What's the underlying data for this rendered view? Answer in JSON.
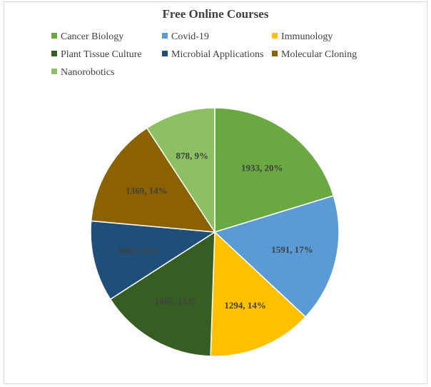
{
  "chart_data": {
    "type": "pie",
    "title": "Free Online Courses",
    "legend_position": "top",
    "slices": [
      {
        "name": "Cancer Biology",
        "value": 1933,
        "percent": "20%",
        "label": "1933, 20%",
        "color": "#6aa842"
      },
      {
        "name": "Covid-19",
        "value": 1591,
        "percent": "17%",
        "label": "1591, 17%",
        "color": "#5b9bd5"
      },
      {
        "name": "Immunology",
        "value": 1294,
        "percent": "14%",
        "label": "1294, 14%",
        "color": "#ffc000"
      },
      {
        "name": "Plant Tissue Culture",
        "value": 1465,
        "percent": "15%",
        "label": "1465, 15%",
        "color": "#375e22"
      },
      {
        "name": "Microbial Applications",
        "value": 1003,
        "percent": "11%",
        "label": "1003, 11%",
        "color": "#1f4e79"
      },
      {
        "name": "Molecular Cloning",
        "value": 1369,
        "percent": "14%",
        "label": "1369, 14%",
        "color": "#8c6100"
      },
      {
        "name": "Nanorobotics",
        "value": 878,
        "percent": "9%",
        "label": "878, 9%",
        "color": "#8cc063"
      }
    ]
  }
}
